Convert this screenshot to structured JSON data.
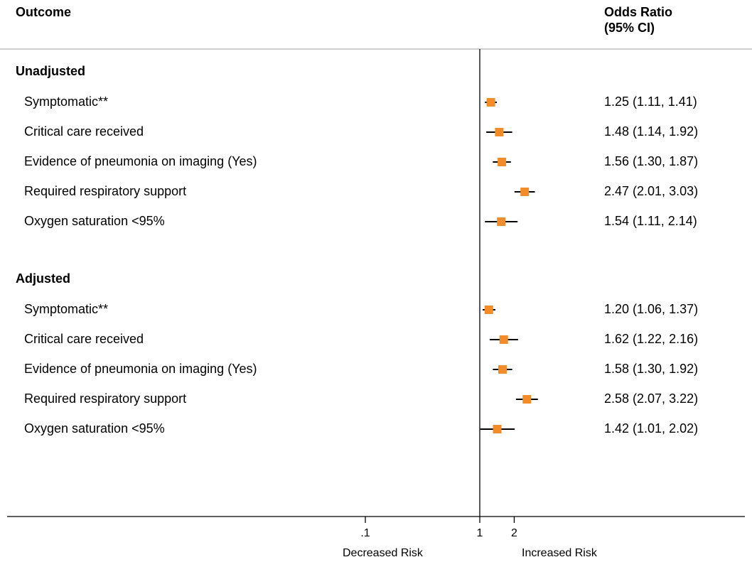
{
  "chart_data": {
    "type": "forest",
    "header": {
      "left": "Outcome",
      "right_line1": "Odds Ratio",
      "right_line2": "(95% CI)"
    },
    "x_scale": "log",
    "x_ticks": [
      ".1",
      "1",
      "2"
    ],
    "x_tick_values": [
      0.1,
      1,
      2
    ],
    "reference_line": 1,
    "axis_annotations": {
      "left": "Decreased Risk",
      "right": "Increased Risk"
    },
    "marker_color": "#f28c28",
    "groups": [
      {
        "name": "Unadjusted",
        "rows": [
          {
            "label": "Symptomatic**",
            "or": 1.25,
            "lo": 1.11,
            "hi": 1.41,
            "text": "1.25 (1.11, 1.41)"
          },
          {
            "label": "Critical care received",
            "or": 1.48,
            "lo": 1.14,
            "hi": 1.92,
            "text": "1.48 (1.14, 1.92)"
          },
          {
            "label": "Evidence of pneumonia on imaging (Yes)",
            "or": 1.56,
            "lo": 1.3,
            "hi": 1.87,
            "text": "1.56 (1.30, 1.87)"
          },
          {
            "label": "Required respiratory support",
            "or": 2.47,
            "lo": 2.01,
            "hi": 3.03,
            "text": "2.47 (2.01, 3.03)"
          },
          {
            "label": "Oxygen saturation <95%",
            "or": 1.54,
            "lo": 1.11,
            "hi": 2.14,
            "text": "1.54 (1.11, 2.14)"
          }
        ]
      },
      {
        "name": "Adjusted",
        "rows": [
          {
            "label": "Symptomatic**",
            "or": 1.2,
            "lo": 1.06,
            "hi": 1.37,
            "text": "1.20 (1.06, 1.37)"
          },
          {
            "label": "Critical care received",
            "or": 1.62,
            "lo": 1.22,
            "hi": 2.16,
            "text": "1.62 (1.22, 2.16)"
          },
          {
            "label": "Evidence of pneumonia on imaging (Yes)",
            "or": 1.58,
            "lo": 1.3,
            "hi": 1.92,
            "text": "1.58 (1.30, 1.92)"
          },
          {
            "label": "Required respiratory support",
            "or": 2.58,
            "lo": 2.07,
            "hi": 3.22,
            "text": "2.58 (2.07, 3.22)"
          },
          {
            "label": "Oxygen saturation <95%",
            "or": 1.42,
            "lo": 1.01,
            "hi": 2.02,
            "text": "1.42 (1.01, 2.02)"
          }
        ]
      }
    ]
  }
}
